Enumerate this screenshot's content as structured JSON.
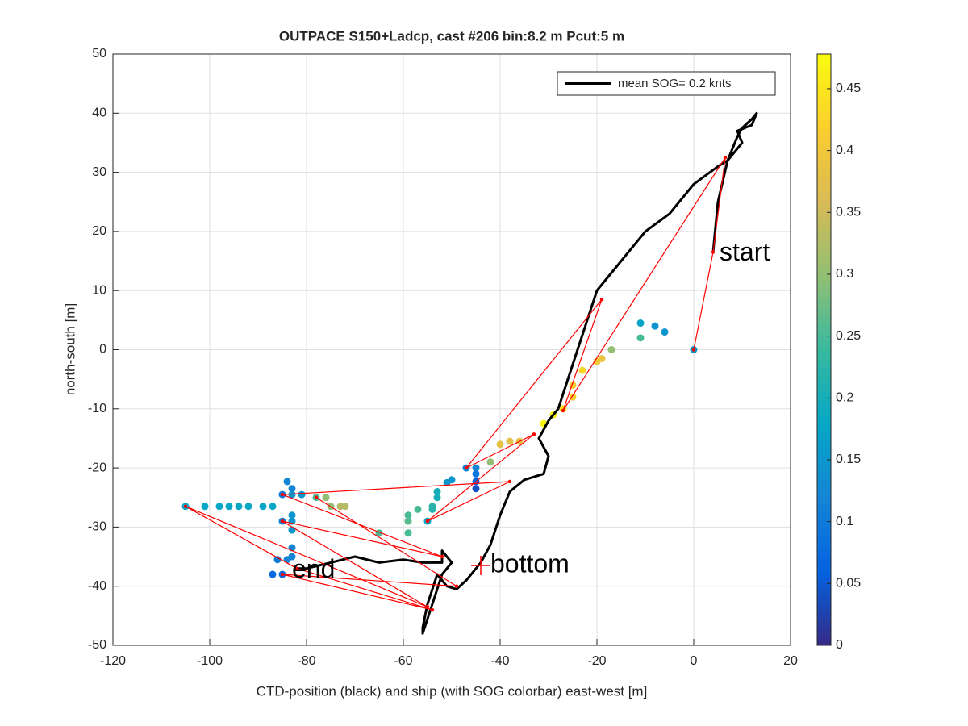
{
  "chart_data": {
    "type": "scatter",
    "title": "OUTPACE S150+Ladcp, cast #206 bin:8.2 m  Pcut:5 m",
    "x_label": "CTD-position (black) and ship (with SOG colorbar) east-west [m]",
    "y_label": "north-south [m]",
    "xlim": [
      -120,
      20
    ],
    "ylim": [
      -50,
      50
    ],
    "xticks": [
      -120,
      -100,
      -80,
      -60,
      -40,
      -20,
      0,
      20
    ],
    "yticks": [
      -50,
      -40,
      -30,
      -20,
      -10,
      0,
      10,
      20,
      30,
      40,
      50
    ],
    "grid": true,
    "legend_position": "upper right",
    "series": [
      {
        "name": "mean SOG=  0.2 knts",
        "color": "#000000",
        "x": [
          4,
          5,
          7,
          9,
          10,
          12,
          13,
          12,
          9,
          10,
          7,
          5,
          0,
          -5,
          -10,
          -15,
          -18,
          -20,
          -22,
          -24,
          -26,
          -28,
          -30,
          -32,
          -30,
          -31,
          -35,
          -38,
          -40,
          -42,
          -44,
          -47,
          -49,
          -51,
          -53,
          -55,
          -56,
          -56,
          -54,
          -52,
          -50,
          -52,
          -52,
          -56,
          -60,
          -65,
          -70,
          -75,
          -80,
          -82
        ],
        "values": [
          16.5,
          25,
          32,
          36,
          37.5,
          39,
          40,
          38,
          37,
          35,
          32,
          31,
          28,
          23,
          20,
          15,
          12,
          10,
          5,
          0,
          -5,
          -10,
          -12,
          -15,
          -18,
          -21,
          -22,
          -24,
          -28,
          -33,
          -36,
          -39,
          -40.5,
          -40,
          -38,
          -43,
          -47,
          -48,
          -43,
          -38,
          -36,
          -34,
          -36,
          -36,
          -35.5,
          -36,
          -35,
          -36,
          -37,
          -37
        ]
      }
    ],
    "ship_track": {
      "color": "#ff0000",
      "x": [
        0,
        4,
        6.5,
        -27,
        -19,
        -47,
        -33,
        -55,
        -38,
        -85,
        -52,
        -85,
        -55,
        -105,
        -82,
        -54,
        -85,
        -49,
        -78
      ],
      "values": [
        0,
        16.5,
        32.5,
        -10.3,
        8.5,
        -20,
        -14.3,
        -29,
        -22.3,
        -24.5,
        -35,
        -29,
        -43.5,
        -26.5,
        -37,
        -44,
        -38,
        -40,
        -25
      ]
    },
    "ship_points": {
      "colormap": "parula",
      "x": [
        -31,
        -29,
        -27,
        -25,
        -25,
        -23,
        -20,
        -19,
        -17,
        -11,
        -11,
        -8,
        -6,
        0,
        -40,
        -38,
        -36,
        -42,
        -45,
        -45,
        -45,
        -45,
        -47,
        -50,
        -51,
        -53,
        -53,
        -54,
        -54,
        -57,
        -59,
        -59,
        -59,
        -55,
        -65,
        -72,
        -73,
        -75,
        -76,
        -78,
        -81,
        -83,
        -83,
        -84,
        -85,
        -87,
        -89,
        -92,
        -94,
        -96,
        -98,
        -101,
        -105,
        -83,
        -83,
        -83,
        -85,
        -83,
        -84,
        -86,
        -85,
        -87,
        -83
      ],
      "values": [
        -12.5,
        -11,
        -10,
        -8,
        -6,
        -3.5,
        -2,
        -1.5,
        0,
        2,
        4.5,
        4,
        3,
        0,
        -16,
        -15.5,
        -15.5,
        -19,
        -20,
        -21,
        -22.3,
        -23.5,
        -20,
        -22,
        -22.5,
        -24,
        -25,
        -26.5,
        -27,
        -27,
        -28,
        -29,
        -31,
        -29,
        -31,
        -26.5,
        -26.5,
        -26.5,
        -25,
        -25,
        -24.5,
        -24.5,
        -23.5,
        -22.3,
        -24.5,
        -26.5,
        -26.5,
        -26.5,
        -26.5,
        -26.5,
        -26.5,
        -26.5,
        -26.5,
        -28,
        -29,
        -30.5,
        -29,
        -33.5,
        -35.5,
        -35.5,
        -38,
        -38,
        -35
      ],
      "sog": [
        0.47,
        0.46,
        0.45,
        0.42,
        0.42,
        0.43,
        0.4,
        0.39,
        0.3,
        0.25,
        0.17,
        0.15,
        0.15,
        0.15,
        0.38,
        0.38,
        0.38,
        0.3,
        0.12,
        0.09,
        0.06,
        0.04,
        0.12,
        0.15,
        0.15,
        0.2,
        0.2,
        0.22,
        0.22,
        0.25,
        0.25,
        0.26,
        0.25,
        0.18,
        0.25,
        0.33,
        0.33,
        0.3,
        0.3,
        0.25,
        0.15,
        0.15,
        0.12,
        0.12,
        0.1,
        0.18,
        0.18,
        0.18,
        0.18,
        0.18,
        0.18,
        0.18,
        0.18,
        0.15,
        0.15,
        0.15,
        0.12,
        0.12,
        0.12,
        0.1,
        0.07,
        0.07,
        0.12
      ]
    },
    "bottom_marker": {
      "color": "#ff0000",
      "x": -44,
      "y": -36.5
    },
    "colorbar": {
      "lim": [
        0,
        0.478
      ],
      "ticks": [
        0,
        0.05,
        0.1,
        0.15,
        0.2,
        0.25,
        0.3,
        0.35,
        0.4,
        0.45
      ]
    },
    "annotations": {
      "start": "start",
      "bottom": "bottom",
      "end": "end"
    }
  }
}
